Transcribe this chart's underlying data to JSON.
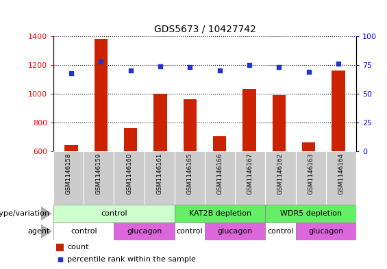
{
  "title": "GDS5673 / 10427742",
  "samples": [
    "GSM1146158",
    "GSM1146159",
    "GSM1146160",
    "GSM1146161",
    "GSM1146165",
    "GSM1146166",
    "GSM1146167",
    "GSM1146162",
    "GSM1146163",
    "GSM1146164"
  ],
  "counts": [
    645,
    1380,
    760,
    1000,
    960,
    705,
    1035,
    990,
    660,
    1160
  ],
  "percentiles": [
    68,
    78,
    70,
    74,
    73,
    70,
    75,
    73,
    69,
    76
  ],
  "bar_color": "#cc2200",
  "dot_color": "#2233cc",
  "ylim_left": [
    600,
    1400
  ],
  "ylim_right": [
    0,
    100
  ],
  "yticks_left": [
    600,
    800,
    1000,
    1200,
    1400
  ],
  "yticks_right": [
    0,
    25,
    50,
    75,
    100
  ],
  "genotype_groups": [
    {
      "label": "control",
      "start": 0,
      "end": 4,
      "color": "#ccffcc"
    },
    {
      "label": "KAT2B depletion",
      "start": 4,
      "end": 7,
      "color": "#66ee66"
    },
    {
      "label": "WDR5 depletion",
      "start": 7,
      "end": 10,
      "color": "#66ee66"
    }
  ],
  "agent_groups": [
    {
      "label": "control",
      "start": 0,
      "end": 2,
      "color": "#ffffff"
    },
    {
      "label": "glucagon",
      "start": 2,
      "end": 4,
      "color": "#dd66dd"
    },
    {
      "label": "control",
      "start": 4,
      "end": 5,
      "color": "#ffffff"
    },
    {
      "label": "glucagon",
      "start": 5,
      "end": 7,
      "color": "#dd66dd"
    },
    {
      "label": "control",
      "start": 7,
      "end": 8,
      "color": "#ffffff"
    },
    {
      "label": "glucagon",
      "start": 8,
      "end": 10,
      "color": "#dd66dd"
    }
  ],
  "legend_count_label": "count",
  "legend_percentile_label": "percentile rank within the sample",
  "genotype_label": "genotype/variation",
  "agent_label": "agent",
  "bar_width": 0.45,
  "sample_bg_color": "#cccccc",
  "background_color": "#ffffff"
}
